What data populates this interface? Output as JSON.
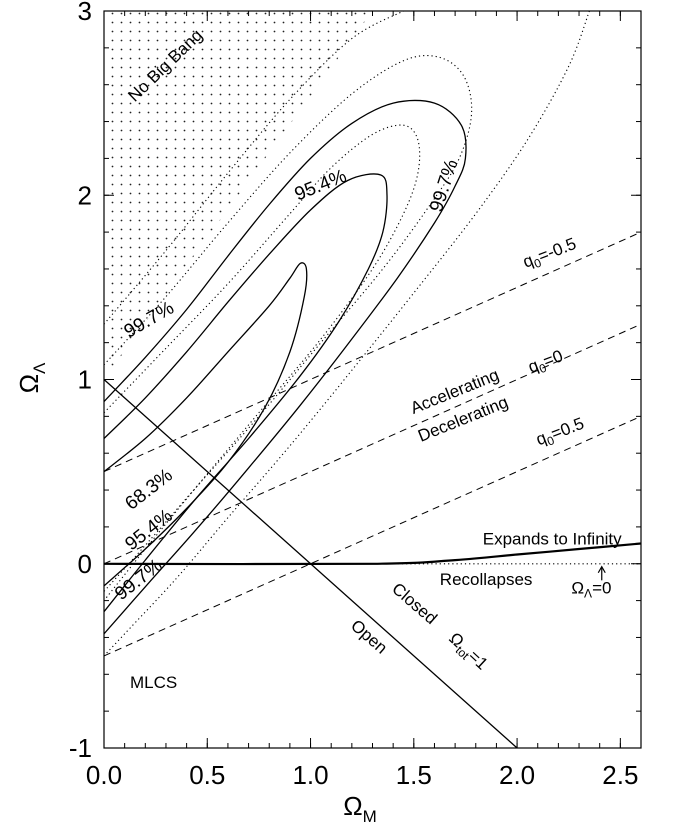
{
  "chart_data": {
    "type": "line",
    "title": "",
    "xlabel": {
      "main": "Ω",
      "sub": "M"
    },
    "ylabel": {
      "main": "Ω",
      "sub": "Λ"
    },
    "xlim": [
      0.0,
      2.6
    ],
    "ylim": [
      -1.0,
      3.0
    ],
    "x_ticks": [
      "0.0",
      "0.5",
      "1.0",
      "1.5",
      "2.0",
      "2.5"
    ],
    "y_ticks": [
      "-1",
      "0",
      "1",
      "2",
      "3"
    ],
    "grid": false,
    "legend": "none",
    "series": [
      {
        "kind": "boundary",
        "style": "solid",
        "points": [
          [
            0.0,
            1.0
          ],
          [
            2.0,
            -1.0
          ]
        ]
      },
      {
        "kind": "boundary",
        "style": "solid",
        "points": [
          [
            0.0,
            0.0
          ],
          [
            1.3,
            0.0
          ],
          [
            1.7,
            0.02
          ],
          [
            2.0,
            0.05
          ],
          [
            2.3,
            0.08
          ],
          [
            2.6,
            0.11
          ]
        ]
      },
      {
        "kind": "reference",
        "style": "dotted",
        "points": [
          [
            1.3,
            0.0
          ],
          [
            2.6,
            0.0
          ]
        ]
      },
      {
        "kind": "deceleration",
        "style": "dashed",
        "points": [
          [
            0.0,
            0.5
          ],
          [
            2.6,
            1.8
          ]
        ]
      },
      {
        "kind": "deceleration",
        "style": "dashed",
        "points": [
          [
            0.0,
            0.0
          ],
          [
            2.6,
            1.3
          ]
        ]
      },
      {
        "kind": "deceleration",
        "style": "dashed",
        "points": [
          [
            0.0,
            -0.5
          ],
          [
            2.6,
            0.8
          ]
        ]
      },
      {
        "kind": "contour",
        "style": "solid",
        "points": [
          [
            0.0,
            0.5
          ],
          [
            0.2,
            0.68
          ],
          [
            0.4,
            0.9
          ],
          [
            0.6,
            1.15
          ],
          [
            0.8,
            1.4
          ],
          [
            0.9,
            1.55
          ],
          [
            0.95,
            1.63
          ],
          [
            0.98,
            1.6
          ],
          [
            0.97,
            1.45
          ],
          [
            0.9,
            1.15
          ],
          [
            0.78,
            0.85
          ],
          [
            0.6,
            0.55
          ],
          [
            0.4,
            0.3
          ],
          [
            0.2,
            0.08
          ],
          [
            0.0,
            -0.12
          ]
        ]
      },
      {
        "kind": "contour",
        "style": "solid",
        "points": [
          [
            0.0,
            0.68
          ],
          [
            0.2,
            0.9
          ],
          [
            0.4,
            1.15
          ],
          [
            0.6,
            1.42
          ],
          [
            0.8,
            1.68
          ],
          [
            1.0,
            1.92
          ],
          [
            1.18,
            2.08
          ],
          [
            1.34,
            2.11
          ],
          [
            1.37,
            2.0
          ],
          [
            1.35,
            1.8
          ],
          [
            1.28,
            1.6
          ],
          [
            1.14,
            1.32
          ],
          [
            0.95,
            1.02
          ],
          [
            0.7,
            0.68
          ],
          [
            0.45,
            0.36
          ],
          [
            0.2,
            0.02
          ],
          [
            0.0,
            -0.26
          ]
        ]
      },
      {
        "kind": "contour",
        "style": "solid",
        "points": [
          [
            0.0,
            0.88
          ],
          [
            0.2,
            1.12
          ],
          [
            0.4,
            1.38
          ],
          [
            0.6,
            1.67
          ],
          [
            0.8,
            1.95
          ],
          [
            1.0,
            2.2
          ],
          [
            1.2,
            2.39
          ],
          [
            1.4,
            2.5
          ],
          [
            1.6,
            2.5
          ],
          [
            1.73,
            2.38
          ],
          [
            1.75,
            2.2
          ],
          [
            1.7,
            2.05
          ],
          [
            1.6,
            1.85
          ],
          [
            1.42,
            1.55
          ],
          [
            1.2,
            1.22
          ],
          [
            0.95,
            0.86
          ],
          [
            0.7,
            0.52
          ],
          [
            0.45,
            0.19
          ],
          [
            0.22,
            -0.1
          ],
          [
            0.0,
            -0.38
          ]
        ]
      },
      {
        "kind": "contour",
        "style": "dotted",
        "points": [
          [
            0.0,
            0.82
          ],
          [
            0.3,
            1.17
          ],
          [
            0.6,
            1.52
          ],
          [
            0.9,
            1.9
          ],
          [
            1.1,
            2.15
          ],
          [
            1.3,
            2.33
          ],
          [
            1.45,
            2.38
          ],
          [
            1.52,
            2.3
          ],
          [
            1.52,
            2.12
          ],
          [
            1.45,
            1.9
          ],
          [
            1.3,
            1.6
          ],
          [
            1.05,
            1.22
          ],
          [
            0.75,
            0.82
          ],
          [
            0.45,
            0.42
          ],
          [
            0.2,
            0.08
          ],
          [
            0.0,
            -0.2
          ]
        ]
      },
      {
        "kind": "contour",
        "style": "dotted",
        "points": [
          [
            0.0,
            1.08
          ],
          [
            0.3,
            1.45
          ],
          [
            0.6,
            1.85
          ],
          [
            0.9,
            2.23
          ],
          [
            1.2,
            2.55
          ],
          [
            1.45,
            2.73
          ],
          [
            1.62,
            2.75
          ],
          [
            1.74,
            2.65
          ],
          [
            1.78,
            2.45
          ],
          [
            1.72,
            2.2
          ],
          [
            1.58,
            1.95
          ],
          [
            1.35,
            1.6
          ],
          [
            1.05,
            1.2
          ],
          [
            0.75,
            0.8
          ],
          [
            0.45,
            0.42
          ],
          [
            0.2,
            0.1
          ],
          [
            0.0,
            -0.15
          ]
        ]
      },
      {
        "kind": "contour",
        "style": "dotted",
        "points": [
          [
            0.0,
            1.3
          ],
          [
            0.3,
            1.7
          ],
          [
            0.6,
            2.12
          ],
          [
            0.9,
            2.52
          ],
          [
            1.2,
            2.85
          ],
          [
            1.45,
            3.0
          ]
        ]
      },
      {
        "kind": "contour",
        "style": "dotted",
        "points": [
          [
            2.35,
            3.0
          ],
          [
            2.25,
            2.7
          ],
          [
            2.05,
            2.3
          ],
          [
            1.8,
            1.9
          ],
          [
            1.5,
            1.47
          ],
          [
            1.2,
            1.05
          ],
          [
            0.9,
            0.64
          ],
          [
            0.6,
            0.25
          ],
          [
            0.35,
            -0.08
          ],
          [
            0.1,
            -0.38
          ],
          [
            0.0,
            -0.5
          ]
        ]
      }
    ],
    "region": {
      "name": "No Big Bang",
      "fill": "dots",
      "points": [
        [
          0.0,
          1.0
        ],
        [
          0.0,
          3.0
        ],
        [
          1.3,
          3.0
        ]
      ]
    },
    "annotations": [
      {
        "text": "No Big Bang",
        "x": 0.3,
        "y": 2.7,
        "angle": -44
      },
      {
        "text": "95.4%",
        "x": 1.05,
        "y": 2.05,
        "angle": -22
      },
      {
        "text": "99.7%",
        "x": 1.65,
        "y": 2.05,
        "angle": -72
      },
      {
        "text": "99.7%",
        "x": 0.22,
        "y": 1.32,
        "angle": -30
      },
      {
        "text": "68.3%",
        "x": 0.22,
        "y": 0.4,
        "angle": -38
      },
      {
        "text": "95.4%",
        "x": 0.22,
        "y": 0.18,
        "angle": -38
      },
      {
        "text": "99.7%",
        "x": 0.17,
        "y": -0.09,
        "angle": -38
      },
      {
        "text": "Accelerating",
        "x": 1.7,
        "y": 0.93,
        "angle": -22
      },
      {
        "text": "Decelerating",
        "x": 1.74,
        "y": 0.78,
        "angle": -22
      },
      {
        "text": "Expands to Infinity",
        "x": 2.17,
        "y": 0.13,
        "angle": 0
      },
      {
        "text": "Recollapses",
        "x": 1.85,
        "y": -0.09,
        "angle": 0
      },
      {
        "text": "Closed",
        "x": 1.5,
        "y": -0.22,
        "angle": 41
      },
      {
        "text": "Open",
        "x": 1.28,
        "y": -0.4,
        "angle": 41
      },
      {
        "text": "MLCS",
        "x": 0.24,
        "y": -0.65,
        "angle": 0
      }
    ],
    "q0_labels": [
      {
        "sub": "0",
        "value": "=-0.5",
        "x": 2.16,
        "y": 1.68,
        "angle": -21
      },
      {
        "sub": "0",
        "value": "=0",
        "x": 2.14,
        "y": 1.09,
        "angle": -21
      },
      {
        "sub": "0",
        "value": "=0.5",
        "x": 2.21,
        "y": 0.71,
        "angle": -21
      }
    ],
    "omega_tot_label": {
      "text": "Ω",
      "sub": "tot",
      "value": "=1",
      "x": 1.76,
      "y": -0.48,
      "angle": 43
    },
    "omega_lambda_label": {
      "text": "Ω",
      "sub": "Λ",
      "value": "=0",
      "x": 2.36,
      "y": -0.14,
      "angle": 0
    }
  }
}
